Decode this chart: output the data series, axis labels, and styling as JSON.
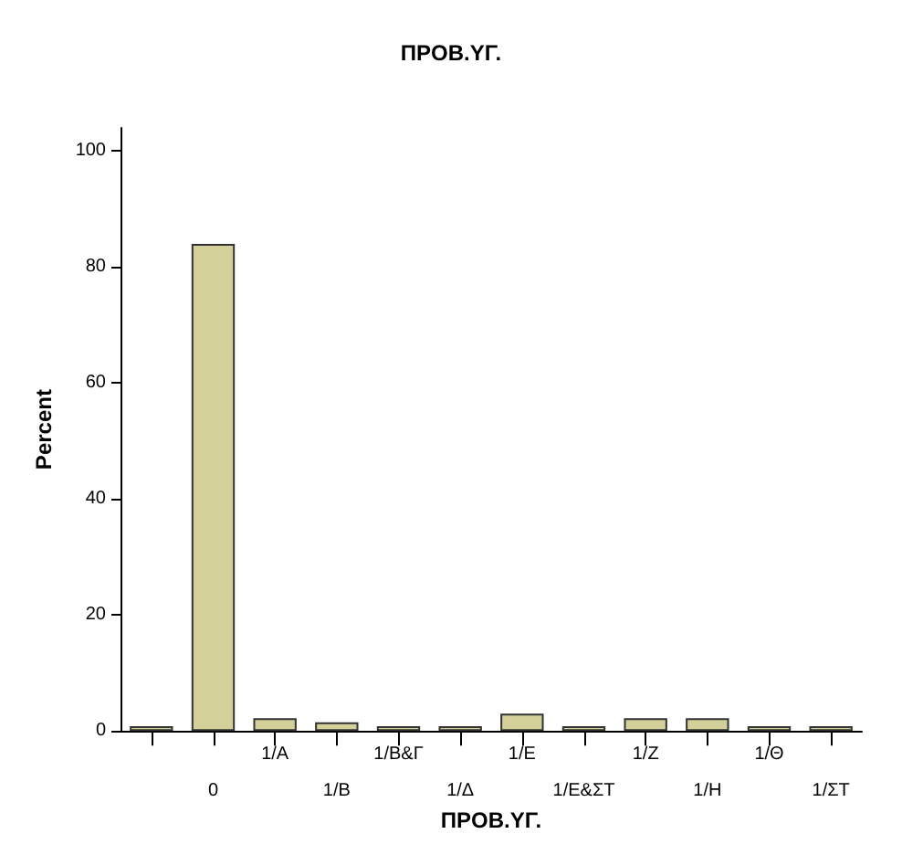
{
  "chart_data": {
    "type": "bar",
    "title": "ΠΡΟΒ.ΥΓ.",
    "xlabel": "ΠΡΟΒ.ΥΓ.",
    "ylabel": "Percent",
    "categories": [
      null,
      "0",
      "1/Α",
      "1/Β",
      "1/Β&Γ",
      "1/Δ",
      "1/Ε",
      "1/Ε&ΣΤ",
      "1/Ζ",
      "1/Η",
      "1/Θ",
      "1/ΣΤ"
    ],
    "values": [
      0.8,
      84,
      2.2,
      1.5,
      0.8,
      0.8,
      3,
      0.8,
      2.2,
      2.2,
      0.8,
      0.8
    ],
    "color": "#d3d09a",
    "ylim": [
      0,
      104
    ],
    "yticks": [
      0,
      20,
      40,
      60,
      80,
      100
    ],
    "grid": false
  }
}
